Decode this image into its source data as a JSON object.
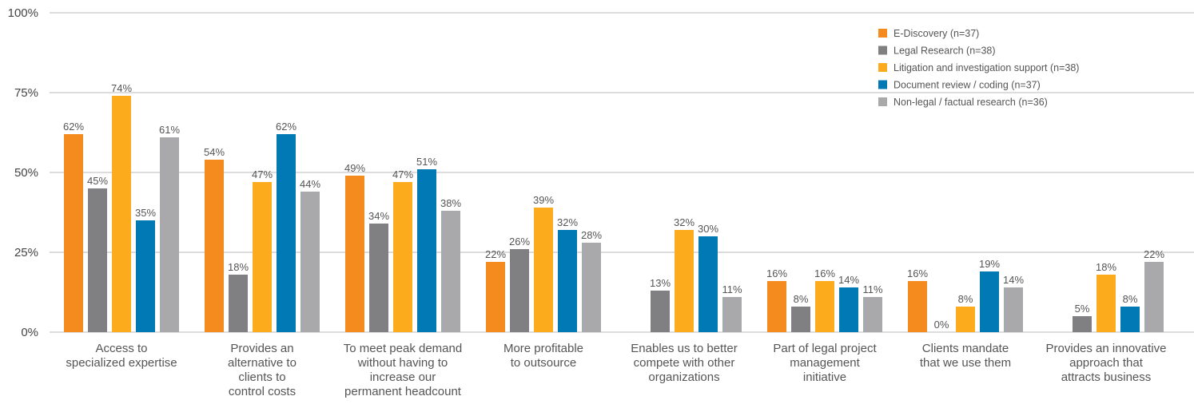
{
  "chart_data": {
    "type": "bar",
    "title": "",
    "xlabel": "",
    "ylabel": "",
    "ylim": [
      0,
      100
    ],
    "yticks": [
      "0%",
      "25%",
      "50%",
      "75%",
      "100%"
    ],
    "ytick_values": [
      0,
      25,
      50,
      75,
      100
    ],
    "grid": "horizontal",
    "legend_position": "top-right",
    "categories": [
      [
        "Access to",
        "specialized expertise"
      ],
      [
        "Provides an",
        "alternative to",
        "clients to",
        "control costs"
      ],
      [
        "To meet peak demand",
        "without having to",
        "increase our",
        "permanent headcount"
      ],
      [
        "More profitable",
        "to outsource"
      ],
      [
        "Enables us to better",
        "compete with other",
        "organizations"
      ],
      [
        "Part of legal project",
        "management",
        "initiative"
      ],
      [
        "Clients mandate",
        "that we use them"
      ],
      [
        "Provides an innovative",
        "approach that",
        "attracts business"
      ]
    ],
    "series": [
      {
        "name": "E-Discovery (n=37)",
        "color": "#f58a1f",
        "values": [
          62,
          54,
          49,
          22,
          null,
          16,
          16,
          null
        ]
      },
      {
        "name": "Legal Research (n=38)",
        "color": "#808083",
        "values": [
          45,
          18,
          34,
          26,
          13,
          8,
          0,
          5
        ]
      },
      {
        "name": "Litigation and investigation support (n=38)",
        "color": "#fbab1c",
        "values": [
          74,
          47,
          47,
          39,
          32,
          16,
          8,
          18
        ]
      },
      {
        "name": "Document review / coding (n=37)",
        "color": "#0079b5",
        "values": [
          35,
          62,
          51,
          32,
          30,
          14,
          19,
          8
        ]
      },
      {
        "name": "Non-legal / factual research (n=36)",
        "color": "#a9a9ab",
        "values": [
          61,
          44,
          38,
          28,
          11,
          11,
          14,
          22
        ]
      }
    ]
  }
}
